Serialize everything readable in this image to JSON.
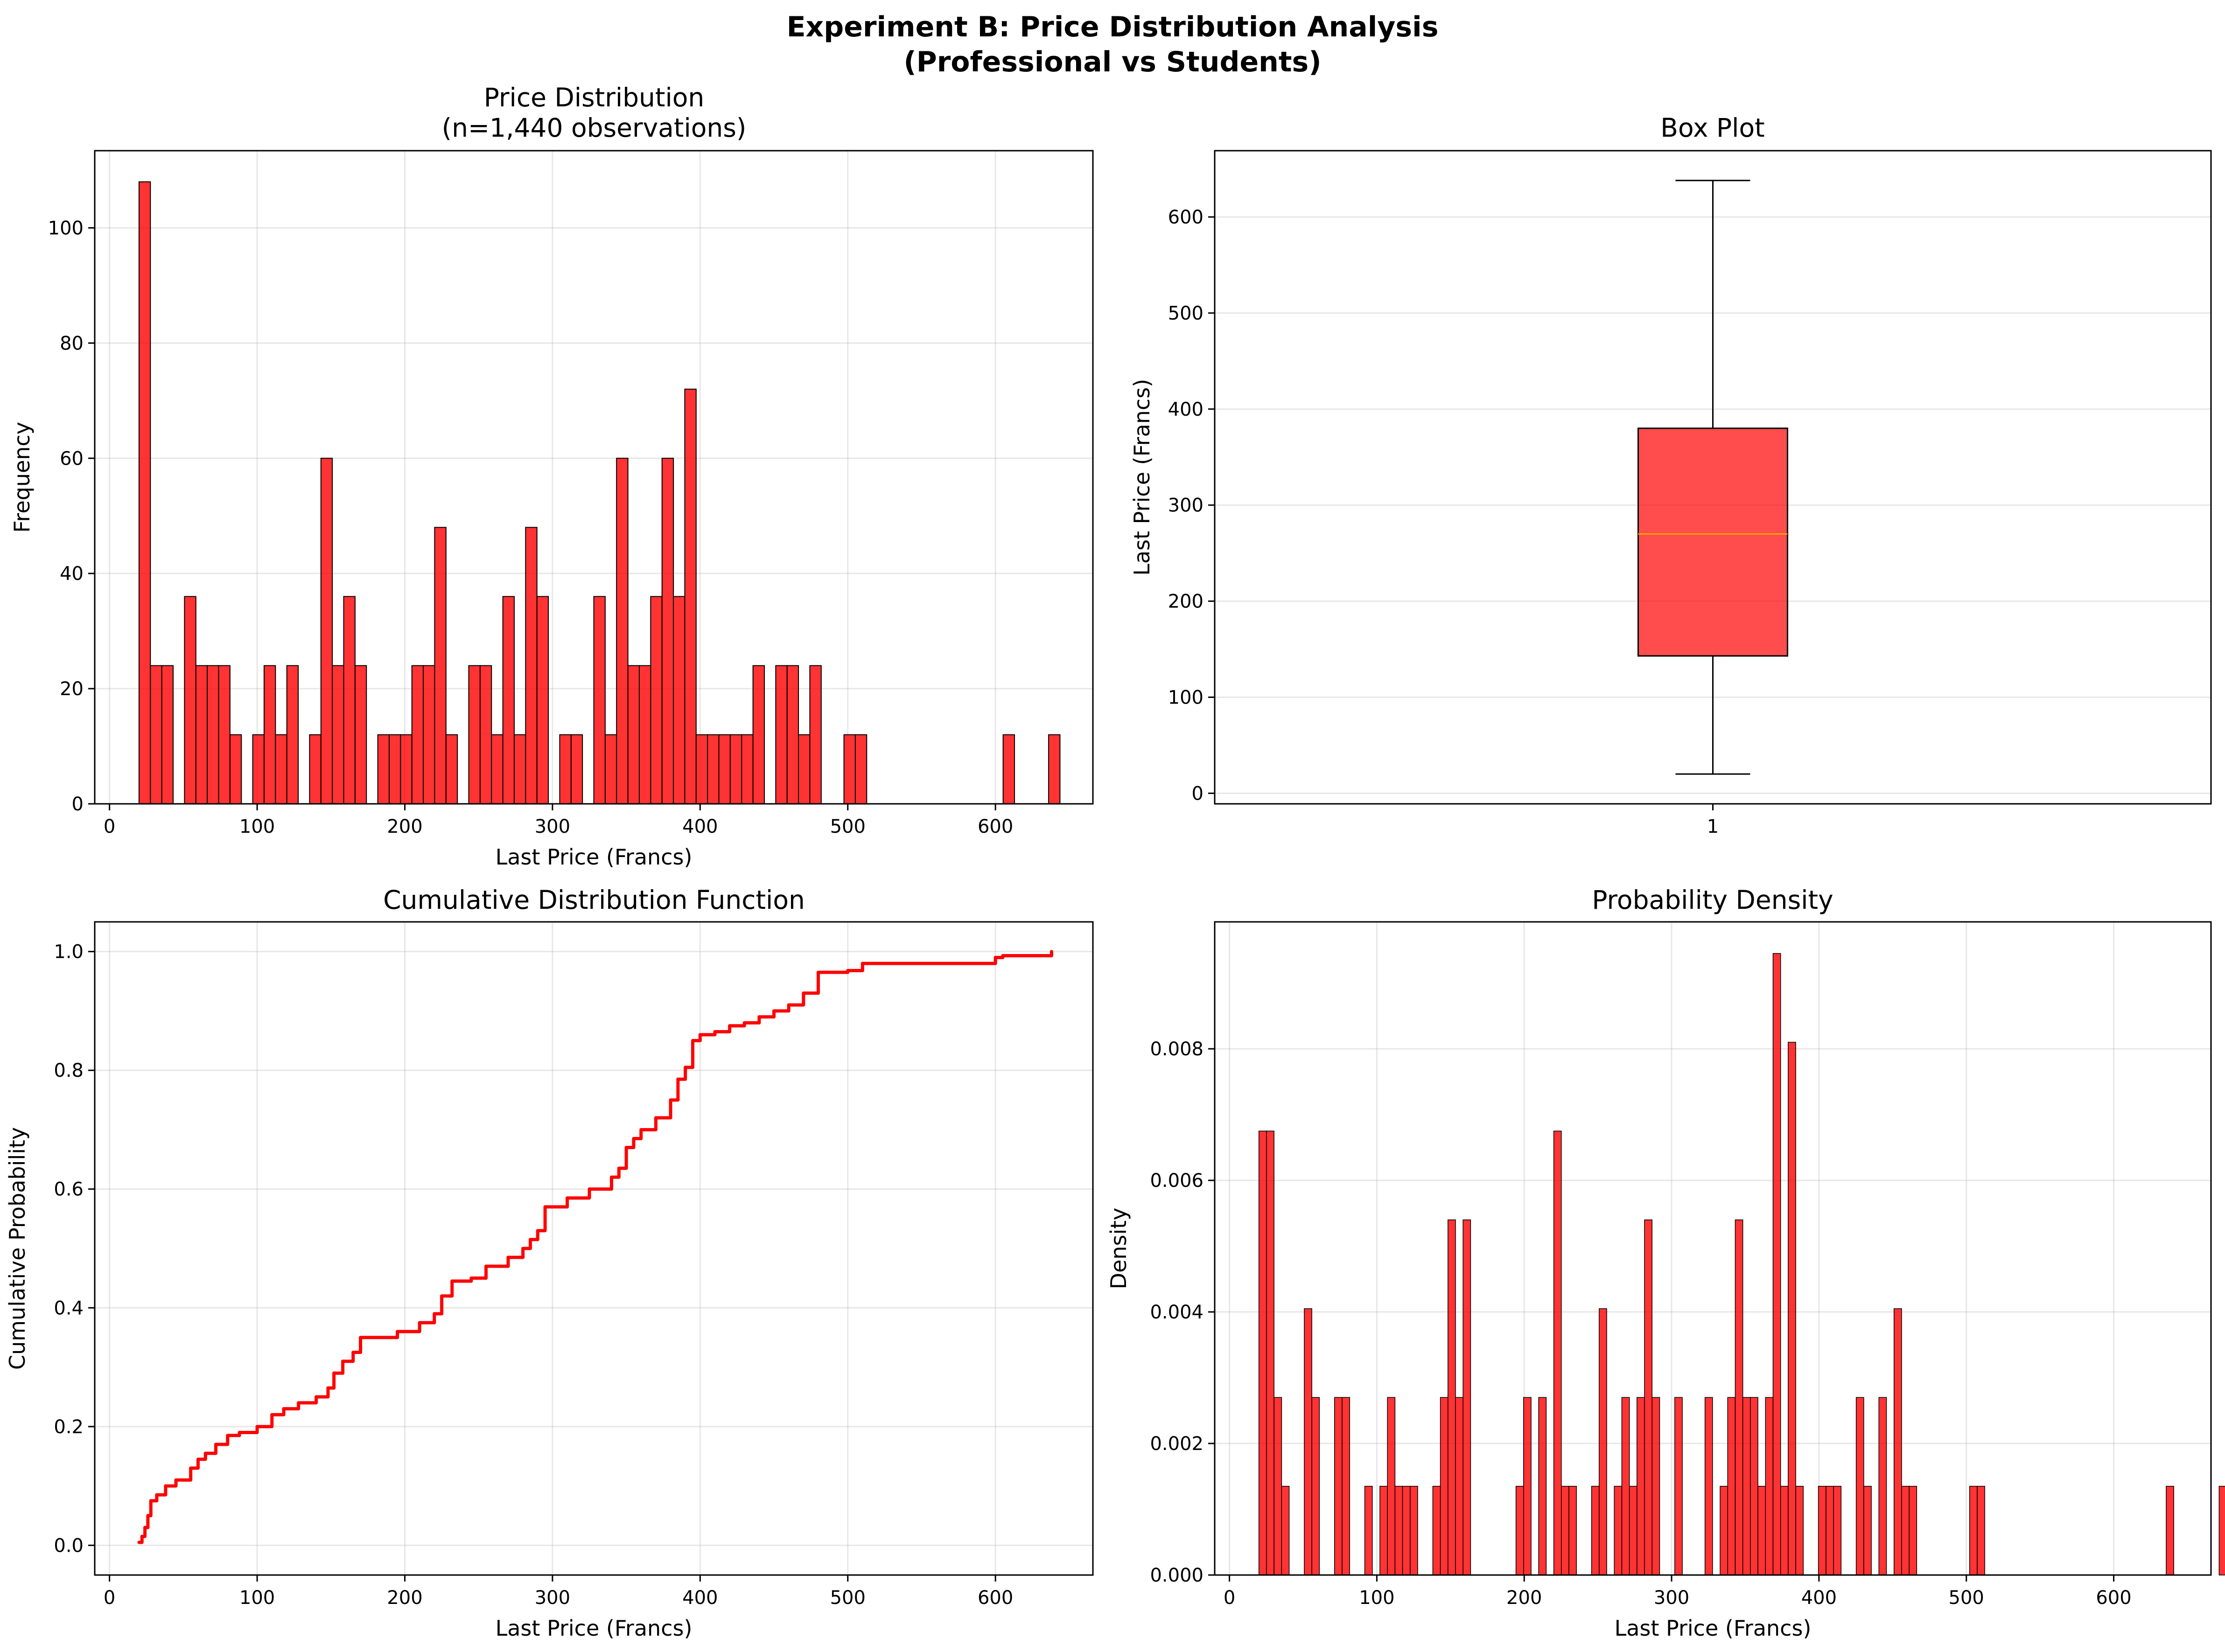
{
  "figure": {
    "title_line1": "Experiment B: Price Distribution Analysis",
    "title_line2": "(Professional vs Students)"
  },
  "chart_data": [
    {
      "type": "bar",
      "panel": "top-left",
      "title_line1": "Price Distribution",
      "title_line2": "(n=1,440 observations)",
      "xlabel": "Last Price (Francs)",
      "ylabel": "Frequency",
      "xlim": [
        -10,
        666
      ],
      "ylim": [
        0,
        113.4
      ],
      "xticks": [
        0,
        100,
        200,
        300,
        400,
        500,
        600
      ],
      "yticks": [
        0,
        20,
        40,
        60,
        80,
        100
      ],
      "grid": true,
      "color": "#ff0000",
      "edge_color": "#000000",
      "bin_edges": [
        20,
        27.7,
        35.4,
        43.1,
        50.8,
        58.5,
        66.2,
        73.9,
        81.6,
        89.3,
        97,
        104.7,
        112.4,
        120.1,
        127.8,
        135.5,
        143.2,
        150.9,
        158.6,
        166.3,
        174,
        181.7,
        189.4,
        197.1,
        204.8,
        212.5,
        220.2,
        227.9,
        235.6,
        243.3,
        251,
        258.7,
        266.4,
        274.1,
        281.8,
        289.5,
        297.2,
        304.9,
        312.6,
        320.3,
        328,
        335.7,
        343.4,
        351.1,
        358.8,
        366.5,
        374.2,
        381.9,
        389.6,
        397.3,
        405,
        412.7,
        420.4,
        428.1,
        435.8,
        443.5,
        451.2,
        458.9,
        466.6,
        474.3,
        482,
        489.7,
        497.4,
        505.1,
        512.8,
        520.5,
        528.2,
        535.9,
        543.6,
        551.3,
        559,
        566.7,
        574.4,
        582.1,
        589.8,
        597.5,
        605.2,
        612.9,
        620.6,
        628.3,
        636,
        643.7
      ],
      "values": [
        108,
        24,
        24,
        0,
        36,
        24,
        24,
        24,
        12,
        0,
        12,
        24,
        12,
        24,
        0,
        12,
        60,
        24,
        36,
        24,
        0,
        12,
        12,
        12,
        24,
        24,
        48,
        12,
        0,
        24,
        24,
        12,
        36,
        12,
        48,
        36,
        0,
        12,
        12,
        0,
        36,
        12,
        60,
        24,
        24,
        36,
        60,
        36,
        72,
        12,
        12,
        12,
        12,
        12,
        24,
        0,
        24,
        24,
        12,
        24,
        0,
        0,
        12,
        12,
        0,
        0,
        0,
        0,
        0,
        0,
        0,
        0,
        0,
        0,
        0,
        0,
        12,
        0,
        0,
        0,
        12
      ]
    },
    {
      "type": "box",
      "panel": "top-right",
      "title": "Box Plot",
      "ylabel": "Last Price (Francs)",
      "xticks": [
        "1"
      ],
      "ylim": [
        -11,
        669
      ],
      "yticks": [
        0,
        100,
        200,
        300,
        400,
        500,
        600
      ],
      "grid": true,
      "min": 20,
      "q1": 143,
      "median": 270,
      "q3": 380,
      "max": 638,
      "box_color": "#ff0000",
      "median_color": "#ffa500"
    },
    {
      "type": "line",
      "panel": "bottom-left",
      "title": "Cumulative Distribution Function",
      "xlabel": "Last Price (Francs)",
      "ylabel": "Cumulative Probability",
      "xlim": [
        -10,
        666
      ],
      "ylim": [
        -0.05,
        1.05
      ],
      "xticks": [
        0,
        100,
        200,
        300,
        400,
        500,
        600
      ],
      "yticks": [
        0.0,
        0.2,
        0.4,
        0.6,
        0.8,
        1.0
      ],
      "yticklabels": [
        "0.0",
        "0.2",
        "0.4",
        "0.6",
        "0.8",
        "1.0"
      ],
      "grid": true,
      "color": "#ff0000",
      "x": [
        20,
        22,
        24,
        26,
        28,
        32,
        38,
        45,
        55,
        60,
        65,
        72,
        80,
        88,
        100,
        110,
        118,
        128,
        140,
        148,
        152,
        158,
        165,
        170,
        195,
        210,
        220,
        225,
        232,
        245,
        255,
        270,
        280,
        285,
        290,
        295,
        310,
        325,
        340,
        345,
        350,
        355,
        360,
        370,
        380,
        385,
        390,
        395,
        400,
        410,
        420,
        430,
        440,
        450,
        460,
        470,
        480,
        500,
        510,
        600,
        605,
        638
      ],
      "y": [
        0.005,
        0.015,
        0.03,
        0.05,
        0.075,
        0.085,
        0.1,
        0.11,
        0.13,
        0.145,
        0.155,
        0.17,
        0.185,
        0.19,
        0.2,
        0.22,
        0.23,
        0.24,
        0.25,
        0.265,
        0.29,
        0.31,
        0.325,
        0.35,
        0.36,
        0.375,
        0.39,
        0.42,
        0.445,
        0.45,
        0.47,
        0.485,
        0.5,
        0.515,
        0.53,
        0.57,
        0.585,
        0.6,
        0.62,
        0.635,
        0.67,
        0.685,
        0.7,
        0.72,
        0.75,
        0.785,
        0.805,
        0.85,
        0.86,
        0.865,
        0.875,
        0.88,
        0.89,
        0.9,
        0.91,
        0.93,
        0.965,
        0.968,
        0.98,
        0.99,
        0.993,
        1.0
      ]
    },
    {
      "type": "bar",
      "panel": "bottom-right",
      "title": "Probability Density",
      "xlabel": "Last Price (Francs)",
      "ylabel": "Density",
      "xlim": [
        -10,
        666
      ],
      "ylim": [
        0,
        0.00993
      ],
      "xticks": [
        0,
        100,
        200,
        300,
        400,
        500,
        600
      ],
      "yticks": [
        0,
        0.002,
        0.004,
        0.006,
        0.008
      ],
      "yticklabels": [
        "0.000",
        "0.002",
        "0.004",
        "0.006",
        "0.008"
      ],
      "grid": true,
      "color": "#ff0000",
      "bin_start": 20,
      "bin_width": 5.13,
      "values": [
        0.00675,
        0.00675,
        0.0027,
        0.00135,
        0,
        0,
        0.00405,
        0.0027,
        0,
        0,
        0.0027,
        0.0027,
        0,
        0,
        0.00135,
        0,
        0.00135,
        0.0027,
        0.00135,
        0.00135,
        0.00135,
        0,
        0,
        0.00135,
        0.0027,
        0.0054,
        0.0027,
        0.0054,
        0,
        0,
        0,
        0,
        0,
        0,
        0.00135,
        0.0027,
        0,
        0.0027,
        0,
        0.00675,
        0.00135,
        0.00135,
        0,
        0,
        0.00135,
        0.00405,
        0,
        0.00135,
        0.0027,
        0.00135,
        0.0027,
        0.0054,
        0.0027,
        0,
        0,
        0.0027,
        0,
        0,
        0,
        0.0027,
        0,
        0.00135,
        0.0027,
        0.0054,
        0.0027,
        0.0027,
        0.00135,
        0.0027,
        0.00945,
        0.00135,
        0.0081,
        0.00135,
        0,
        0,
        0.00135,
        0.00135,
        0.00135,
        0,
        0,
        0.0027,
        0.00135,
        0,
        0.0027,
        0,
        0.00405,
        0.00135,
        0.00135,
        0,
        0,
        0,
        0,
        0,
        0,
        0,
        0.00135,
        0.00135,
        0,
        0,
        0,
        0,
        0,
        0,
        0,
        0,
        0,
        0,
        0,
        0,
        0,
        0,
        0,
        0,
        0,
        0,
        0,
        0,
        0,
        0,
        0,
        0,
        0.00135,
        0,
        0,
        0,
        0,
        0,
        0,
        0.00135
      ]
    }
  ]
}
